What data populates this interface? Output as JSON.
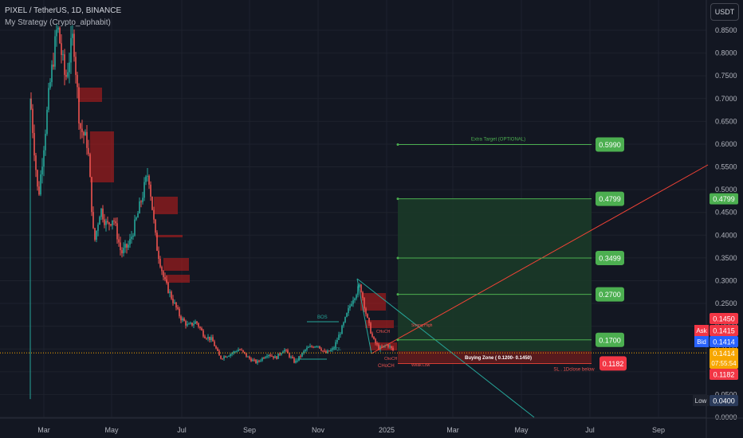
{
  "header": {
    "title": "PIXEL / TetherUS, 1D, BINANCE",
    "strategy": "My Strategy (Crypto_alphabit)",
    "currency": "USDT"
  },
  "colors": {
    "bg": "#131722",
    "grid": "#1e222d",
    "up": "#26a69a",
    "down": "#ef5350",
    "target": "#4caf50",
    "trend": "#f44336",
    "channel": "#26a69a",
    "zone": "#b71c1c"
  },
  "chart_data": {
    "type": "candlestick",
    "y_axis": {
      "range": [
        0,
        0.88
      ],
      "ticks": [
        "0.8500",
        "0.8000",
        "0.7500",
        "0.7000",
        "0.6500",
        "0.6000",
        "0.5500",
        "0.5000",
        "0.4500",
        "0.4000",
        "0.3500",
        "0.3000",
        "0.2500",
        "0.2000",
        "0.1500",
        "0.1000",
        "0.0500",
        "0.0000"
      ]
    },
    "x_axis": {
      "ticks": [
        "Mar",
        "May",
        "Jul",
        "Sep",
        "Nov",
        "2025",
        "Mar",
        "May",
        "Jul",
        "Sep"
      ]
    },
    "targets": [
      {
        "label": "0.5990",
        "value": 0.599,
        "note": "Extra Target (OPTIONAL)"
      },
      {
        "label": "0.4799",
        "value": 0.4799
      },
      {
        "label": "0.3499",
        "value": 0.3499
      },
      {
        "label": "0.2700",
        "value": 0.27
      },
      {
        "label": "0.1700",
        "value": 0.17
      }
    ],
    "stop_loss": {
      "label": "0.1182",
      "value": 0.1182,
      "note": "SL . 1Dclose below"
    },
    "buying_zone": {
      "text": "Buying Zone ( 0.1200- 0.1450)",
      "low": 0.12,
      "high": 0.145
    },
    "price_tags": {
      "target_right": "0.4799",
      "zone_high": "0.1450",
      "ask_label": "Ask",
      "ask": "0.1415",
      "bid_label": "Bid",
      "bid": "0.1414",
      "last": "0.1414",
      "countdown": "07:55:54",
      "sl": "0.1182",
      "low_label": "Low",
      "low": "0.0400"
    },
    "annotations": [
      "BOS",
      "CHoCH",
      "ChoCH",
      "Strong High",
      "EQL",
      "CHoCH",
      "Weak Low"
    ]
  }
}
